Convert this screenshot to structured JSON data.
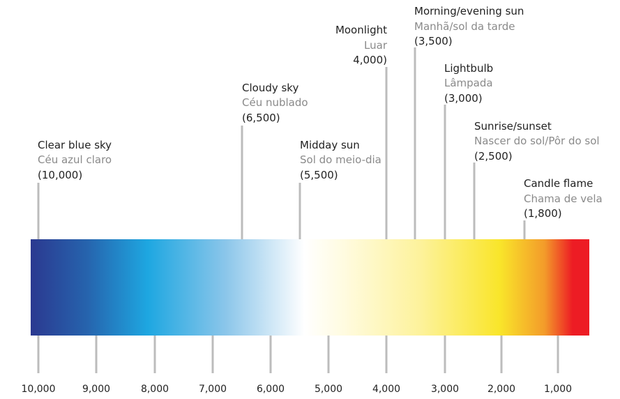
{
  "annotations": [
    {
      "label": "Clear blue sky",
      "translation": "Céu azul claro",
      "value": "(10,000)"
    },
    {
      "label": "Cloudy sky",
      "translation": "Céu nublado",
      "value": "(6,500)"
    },
    {
      "label": "Midday sun",
      "translation": "Sol do meio-dia",
      "value": "(5,500)"
    },
    {
      "label": "Moonlight",
      "translation": "Luar",
      "value": "4,000)"
    },
    {
      "label": "Morning/evening sun",
      "translation": "Manhã/sol da tarde",
      "value": "(3,500)"
    },
    {
      "label": "Lightbulb",
      "translation": "Lâmpada",
      "value": "(3,000)"
    },
    {
      "label": "Sunrise/sunset",
      "translation": "Nascer do sol/Pôr do sol",
      "value": "(2,500)"
    },
    {
      "label": "Candle flame",
      "translation": "Chama de vela",
      "value": "(1,800)"
    }
  ],
  "axis_labels": [
    "10,000",
    "9,000",
    "8,000",
    "7,000",
    "6,000",
    "5,000",
    "4,000",
    "3,000",
    "2,000",
    "1,000"
  ]
}
